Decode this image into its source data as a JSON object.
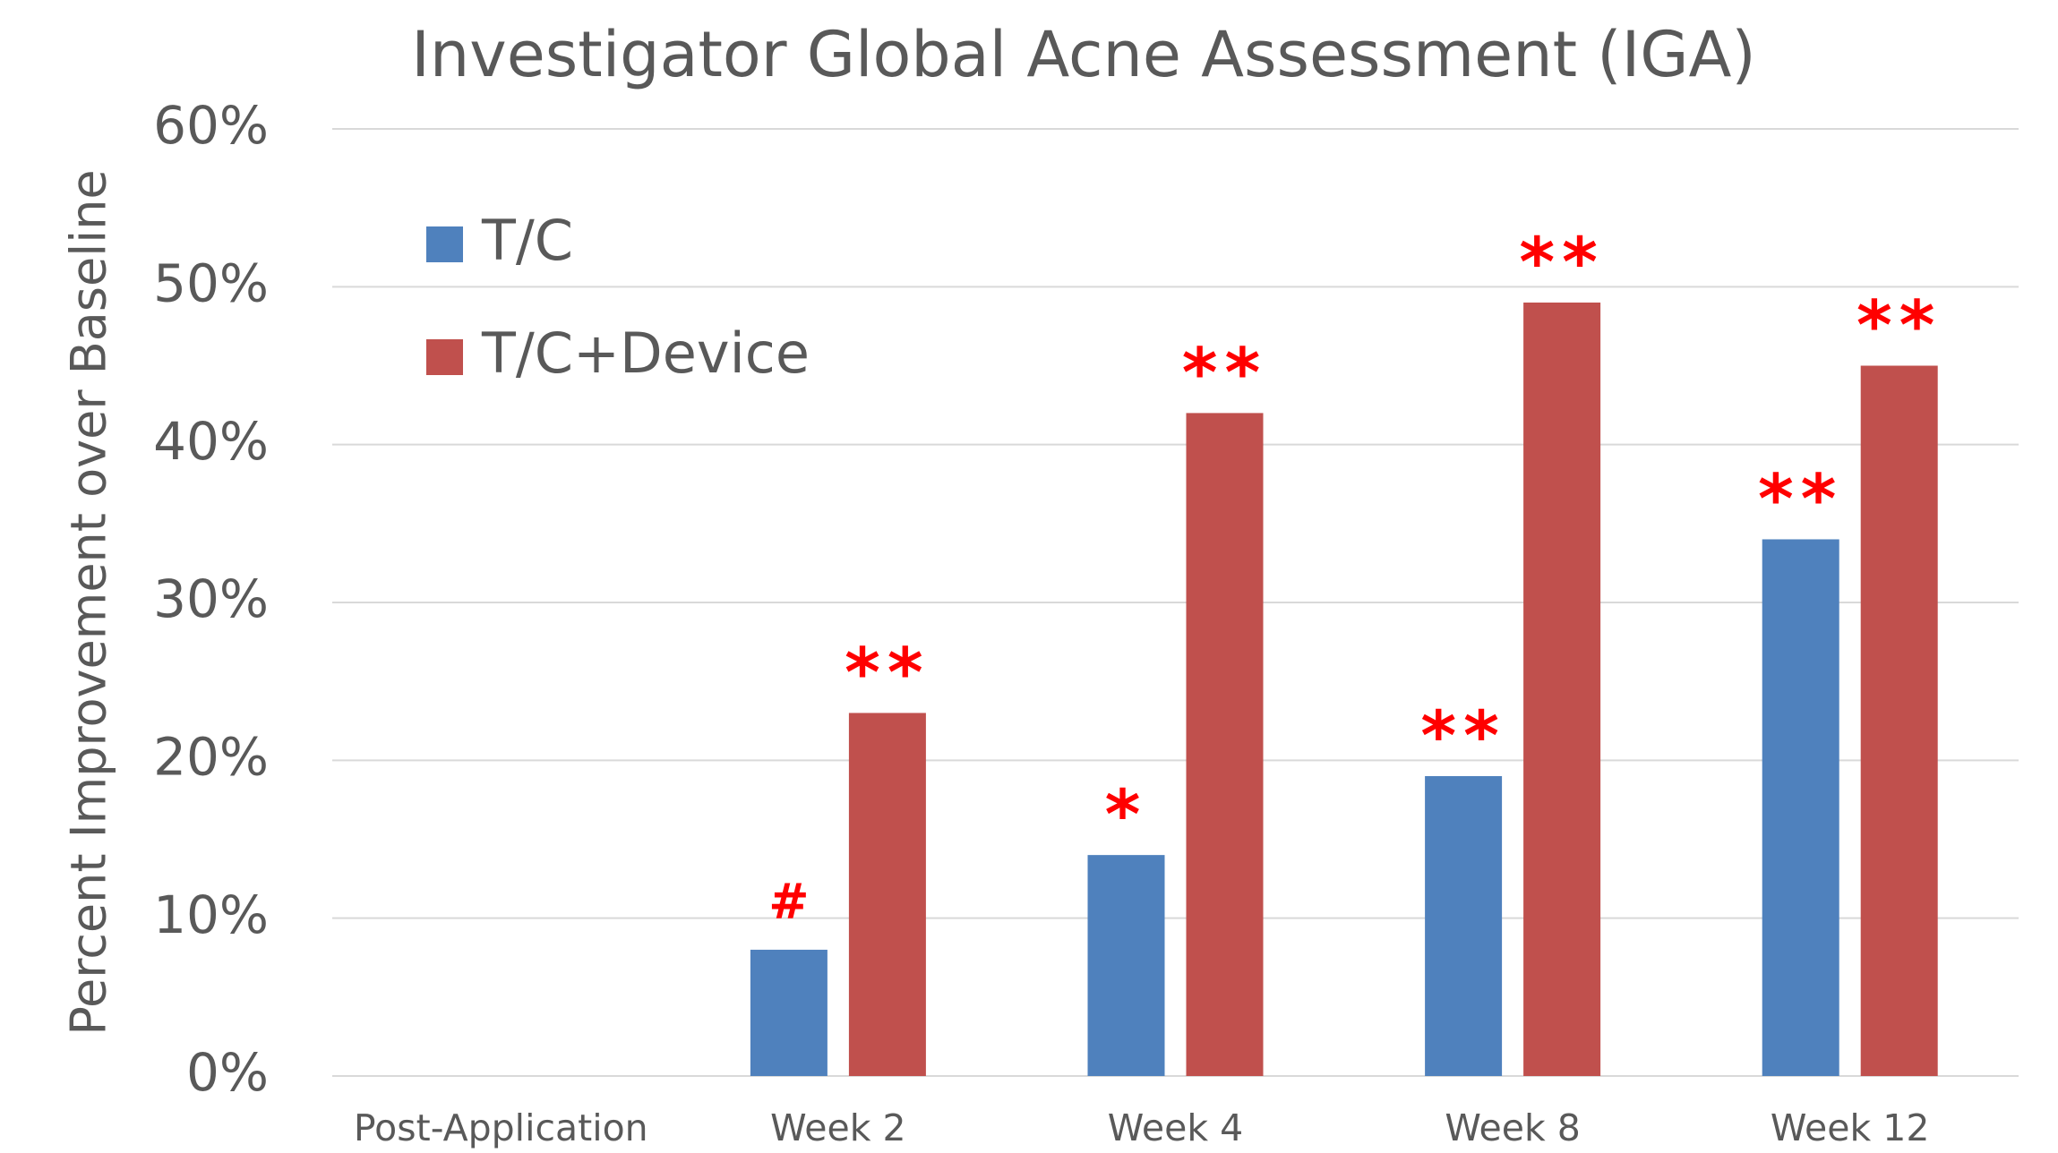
{
  "chart_data": {
    "type": "bar",
    "title": "Investigator Global Acne Assessment (IGA)",
    "y_axis_label": "Percent Improvement over Baseline",
    "categories": [
      "Post-Application",
      "Week 2",
      "Week 4",
      "Week 8",
      "Week 12"
    ],
    "series": [
      {
        "name": "T/C",
        "color": "#4f81bd",
        "values": [
          0,
          8,
          14,
          19,
          34
        ],
        "annotations": [
          null,
          "#",
          "*",
          "**",
          "**"
        ]
      },
      {
        "name": "T/C+Device",
        "color": "#c0504d",
        "values": [
          0,
          23,
          42,
          49,
          45
        ],
        "annotations": [
          null,
          "**",
          "**",
          "**",
          "**"
        ]
      }
    ],
    "annotation_color": "#ff0000",
    "ylim": [
      0,
      60
    ],
    "yticks": [
      {
        "value": 0,
        "label": "0%"
      },
      {
        "value": 10,
        "label": "10%"
      },
      {
        "value": 20,
        "label": "20%"
      },
      {
        "value": 30,
        "label": "30%"
      },
      {
        "value": 40,
        "label": "40%"
      },
      {
        "value": 50,
        "label": "50%"
      },
      {
        "value": 60,
        "label": "60%"
      }
    ],
    "grid": true,
    "legend": "upper left"
  }
}
